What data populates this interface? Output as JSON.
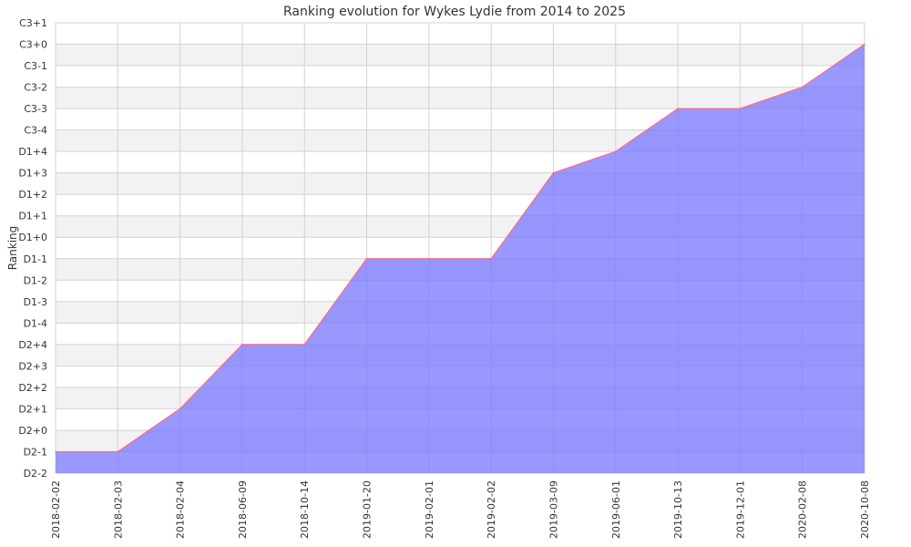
{
  "chart_data": {
    "type": "area",
    "title": "Ranking evolution for Wykes Lydie from 2014 to 2025",
    "xlabel": "",
    "ylabel": "Ranking",
    "x": [
      "2018-02-02",
      "2018-02-03",
      "2018-02-04",
      "2018-06-09",
      "2018-10-14",
      "2019-01-20",
      "2019-02-01",
      "2019-02-02",
      "2019-03-09",
      "2019-06-01",
      "2019-10-13",
      "2019-12-01",
      "2020-02-08",
      "2020-10-08"
    ],
    "y_categories": [
      "D2-2",
      "D2-1",
      "D2+0",
      "D2+1",
      "D2+2",
      "D2+3",
      "D2+4",
      "D1-4",
      "D1-3",
      "D1-2",
      "D1-1",
      "D1+0",
      "D1+1",
      "D1+2",
      "D1+3",
      "D1+4",
      "C3-4",
      "C3-3",
      "C3-2",
      "C3-1",
      "C3+0",
      "C3+1"
    ],
    "values": [
      "D2-1",
      "D2-1",
      "D2+1",
      "D2+4",
      "D2+4",
      "D1-1",
      "D1-1",
      "D1-1",
      "D1+3",
      "D1+4",
      "C3-3",
      "C3-3",
      "C3-2",
      "C3+0"
    ],
    "grid": true,
    "legend": "none",
    "colors": {
      "fill": "#7b7bfe",
      "line": "#ff6b8b",
      "grid": "#d3d3d3",
      "band": "#f2f2f2",
      "text": "#333333"
    }
  }
}
